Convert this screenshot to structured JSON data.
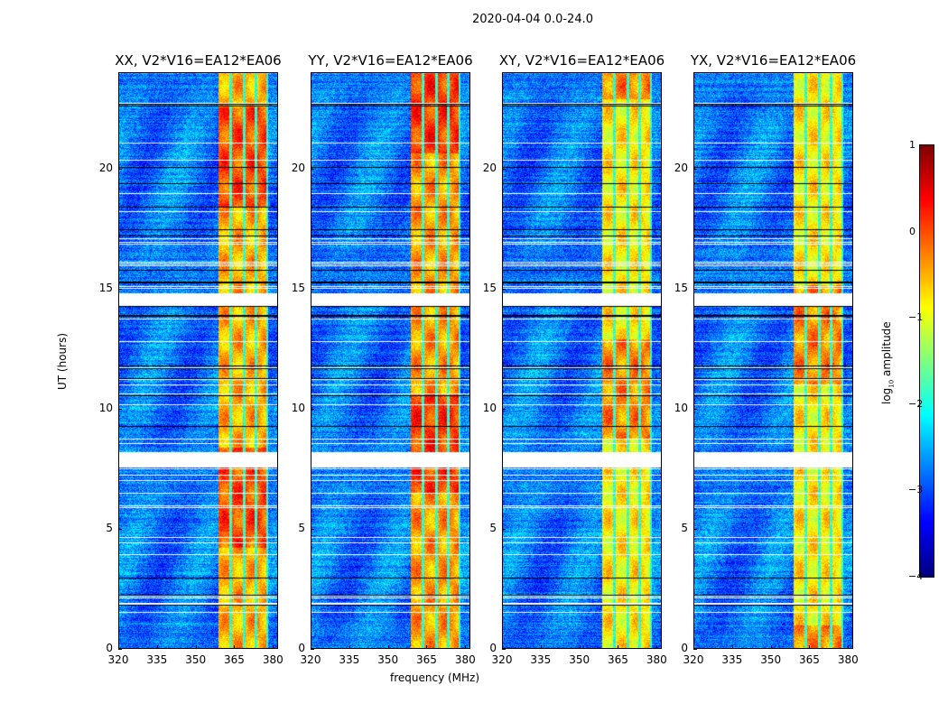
{
  "chart_data": {
    "type": "heatmap",
    "suptitle": "2020-04-04 0.0-24.0",
    "xlabel": "frequency (MHz)",
    "ylabel": "UT (hours)",
    "xlim": [
      320,
      382
    ],
    "ylim": [
      0,
      24
    ],
    "xticks": [
      "320",
      "335",
      "350",
      "365",
      "380"
    ],
    "xtick_values": [
      320,
      335,
      350,
      365,
      380
    ],
    "yticks": [
      "0",
      "5",
      "10",
      "15",
      "20"
    ],
    "ytick_values": [
      0,
      5,
      10,
      15,
      20
    ],
    "panels": [
      {
        "title": "XX, V2*V16=EA12*EA06",
        "band_level": -0.5
      },
      {
        "title": "YY, V2*V16=EA12*EA06",
        "band_level": -0.4
      },
      {
        "title": "XY, V2*V16=EA12*EA06",
        "band_level": -0.8
      },
      {
        "title": "YX, V2*V16=EA12*EA06",
        "band_level": -0.8
      }
    ],
    "colorbar": {
      "label": "log",
      "label_sub": "10",
      "label_rest": " amplitude",
      "colormap": "jet",
      "range": [
        -4,
        1
      ],
      "ticks": [
        "1",
        "0",
        "−1",
        "−2",
        "−3",
        "−4"
      ],
      "tick_values": [
        1,
        0,
        -1,
        -2,
        -3,
        -4
      ]
    },
    "background_level": -2.8,
    "rfi_band_mhz": [
      358.7,
      378
    ],
    "channel_gaps_mhz": [
      363.5,
      368.8,
      373.3,
      377.9
    ],
    "flagged_hours": [
      [
        14.3,
        14.8
      ],
      [
        7.6,
        8.2
      ]
    ]
  }
}
